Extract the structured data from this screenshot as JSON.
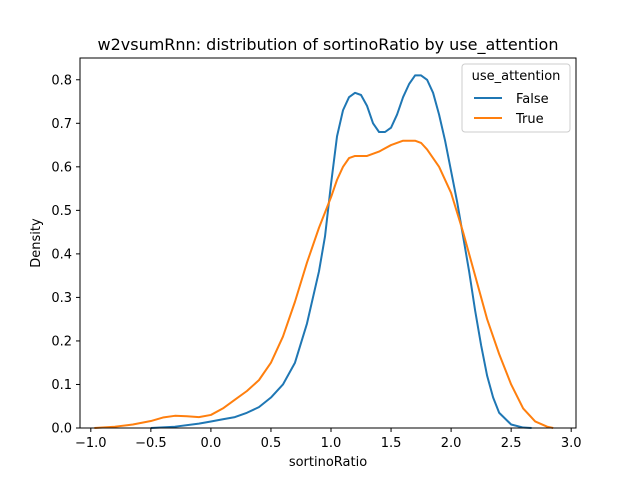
{
  "chart_data": {
    "type": "line",
    "title": "w2vsumRnn: distribution of sortinoRatio by use_attention",
    "xlabel": "sortinoRatio",
    "ylabel": "Density",
    "xlim": [
      -1.09,
      3.04
    ],
    "ylim": [
      0,
      0.85
    ],
    "x_ticks": [
      -1.0,
      -0.5,
      0.0,
      0.5,
      1.0,
      1.5,
      2.0,
      2.5,
      3.0
    ],
    "x_tick_labels": [
      "−1.0",
      "−0.5",
      "0.0",
      "0.5",
      "1.0",
      "1.5",
      "2.0",
      "2.5",
      "3.0"
    ],
    "y_ticks": [
      0.0,
      0.1,
      0.2,
      0.3,
      0.4,
      0.5,
      0.6,
      0.7,
      0.8
    ],
    "y_tick_labels": [
      "0.0",
      "0.1",
      "0.2",
      "0.3",
      "0.4",
      "0.5",
      "0.6",
      "0.7",
      "0.8"
    ],
    "grid": false,
    "legend": {
      "title": "use_attention",
      "placement": "top-right"
    },
    "series": [
      {
        "name": "False",
        "color": "#1f77b4",
        "x": [
          -0.5,
          -0.3,
          -0.1,
          0.0,
          0.1,
          0.2,
          0.3,
          0.4,
          0.5,
          0.6,
          0.7,
          0.8,
          0.9,
          0.95,
          1.0,
          1.05,
          1.1,
          1.15,
          1.2,
          1.25,
          1.3,
          1.35,
          1.4,
          1.45,
          1.5,
          1.55,
          1.6,
          1.65,
          1.7,
          1.75,
          1.8,
          1.85,
          1.9,
          1.95,
          2.0,
          2.05,
          2.1,
          2.15,
          2.2,
          2.25,
          2.3,
          2.35,
          2.4,
          2.5,
          2.6,
          2.67
        ],
        "y": [
          0.0,
          0.003,
          0.01,
          0.015,
          0.02,
          0.025,
          0.035,
          0.048,
          0.07,
          0.1,
          0.15,
          0.24,
          0.36,
          0.44,
          0.56,
          0.67,
          0.73,
          0.76,
          0.77,
          0.765,
          0.74,
          0.7,
          0.68,
          0.68,
          0.69,
          0.72,
          0.76,
          0.79,
          0.81,
          0.81,
          0.8,
          0.77,
          0.72,
          0.66,
          0.59,
          0.52,
          0.44,
          0.36,
          0.27,
          0.19,
          0.12,
          0.07,
          0.035,
          0.008,
          0.001,
          0.0
        ]
      },
      {
        "name": "True",
        "color": "#ff7f0e",
        "x": [
          -0.97,
          -0.8,
          -0.65,
          -0.5,
          -0.4,
          -0.3,
          -0.2,
          -0.1,
          0.0,
          0.1,
          0.2,
          0.3,
          0.4,
          0.5,
          0.6,
          0.7,
          0.8,
          0.9,
          1.0,
          1.05,
          1.1,
          1.15,
          1.2,
          1.3,
          1.4,
          1.5,
          1.6,
          1.7,
          1.75,
          1.8,
          1.9,
          2.0,
          2.1,
          2.2,
          2.3,
          2.4,
          2.5,
          2.6,
          2.7,
          2.8,
          2.85
        ],
        "y": [
          0.0,
          0.003,
          0.008,
          0.016,
          0.024,
          0.028,
          0.027,
          0.025,
          0.03,
          0.045,
          0.065,
          0.085,
          0.11,
          0.15,
          0.21,
          0.29,
          0.38,
          0.46,
          0.53,
          0.57,
          0.6,
          0.62,
          0.625,
          0.625,
          0.635,
          0.65,
          0.66,
          0.66,
          0.655,
          0.64,
          0.6,
          0.54,
          0.45,
          0.35,
          0.25,
          0.17,
          0.1,
          0.045,
          0.015,
          0.003,
          0.0
        ]
      }
    ]
  }
}
